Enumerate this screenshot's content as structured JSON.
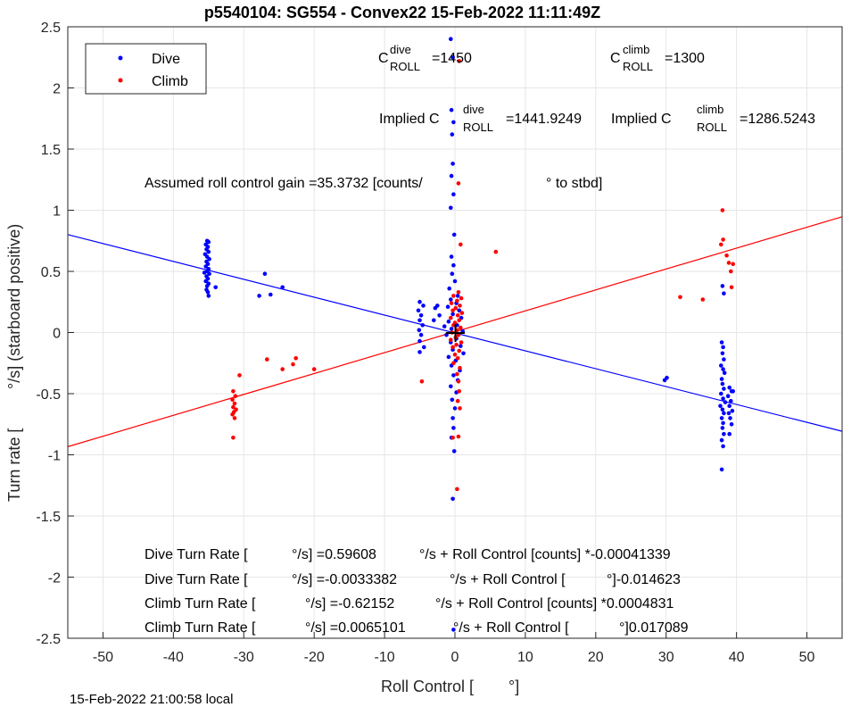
{
  "chart_data": {
    "type": "scatter",
    "title": "p5540104: SG554 - Convex22 15-Feb-2022 11:11:49Z",
    "xlabel_left": "Roll Control [",
    "xlabel_right": "°]",
    "ylabel_left": "Turn rate [",
    "ylabel_right": "°/s] (starboard positive)",
    "xlim": [
      -55,
      55
    ],
    "ylim": [
      -2.5,
      2.5
    ],
    "xticks": [
      -50,
      -40,
      -30,
      -20,
      -10,
      0,
      10,
      20,
      30,
      40,
      50
    ],
    "yticks": [
      -2.5,
      -2,
      -1.5,
      -1,
      -0.5,
      0,
      0.5,
      1,
      1.5,
      2,
      2.5
    ],
    "grid": true,
    "legend_position": "top-left",
    "colors": {
      "dive": "#0000ff",
      "climb": "#ff0000",
      "origin_mark": "#000000"
    },
    "series": [
      {
        "name": "Dive",
        "color": "#0000ff",
        "points": [
          [
            -35.2,
            0.75
          ],
          [
            -35.0,
            0.74
          ],
          [
            -35.4,
            0.72
          ],
          [
            -35.1,
            0.7
          ],
          [
            -35.3,
            0.68
          ],
          [
            -35.0,
            0.66
          ],
          [
            -35.5,
            0.64
          ],
          [
            -35.2,
            0.62
          ],
          [
            -34.9,
            0.6
          ],
          [
            -35.3,
            0.58
          ],
          [
            -35.1,
            0.56
          ],
          [
            -35.4,
            0.54
          ],
          [
            -35.0,
            0.52
          ],
          [
            -35.2,
            0.5
          ],
          [
            -35.6,
            0.49
          ],
          [
            -34.9,
            0.48
          ],
          [
            -35.3,
            0.46
          ],
          [
            -35.1,
            0.44
          ],
          [
            -35.4,
            0.42
          ],
          [
            -35.0,
            0.4
          ],
          [
            -35.2,
            0.38
          ],
          [
            -35.3,
            0.35
          ],
          [
            -35.1,
            0.33
          ],
          [
            -35.0,
            0.3
          ],
          [
            -34.0,
            0.37
          ],
          [
            -27.0,
            0.48
          ],
          [
            -27.8,
            0.3
          ],
          [
            -26.2,
            0.31
          ],
          [
            -24.5,
            0.37
          ],
          [
            -5.0,
            0.25
          ],
          [
            -4.5,
            0.22
          ],
          [
            -5.2,
            0.18
          ],
          [
            -4.8,
            0.14
          ],
          [
            -5.0,
            0.1
          ],
          [
            -4.6,
            0.06
          ],
          [
            -5.1,
            0.02
          ],
          [
            -4.8,
            -0.02
          ],
          [
            -5.0,
            -0.07
          ],
          [
            -4.4,
            -0.12
          ],
          [
            -5.0,
            -0.16
          ],
          [
            -2.5,
            0.22
          ],
          [
            -2.2,
            0.14
          ],
          [
            -3.0,
            0.1
          ],
          [
            -2.8,
            0.2
          ],
          [
            -1.5,
            0.05
          ],
          [
            -0.6,
            2.4
          ],
          [
            -0.3,
            2.25
          ],
          [
            -0.5,
            1.82
          ],
          [
            -0.2,
            1.72
          ],
          [
            -0.4,
            1.62
          ],
          [
            -0.3,
            1.38
          ],
          [
            -0.5,
            1.28
          ],
          [
            -0.2,
            1.13
          ],
          [
            -0.6,
            1.02
          ],
          [
            -0.1,
            0.8
          ],
          [
            -0.5,
            0.62
          ],
          [
            -0.2,
            0.55
          ],
          [
            -0.4,
            0.48
          ],
          [
            0.0,
            0.42
          ],
          [
            -0.8,
            0.36
          ],
          [
            0.4,
            0.3
          ],
          [
            -0.6,
            0.27
          ],
          [
            0.2,
            0.24
          ],
          [
            -1.0,
            0.21
          ],
          [
            0.6,
            0.18
          ],
          [
            -0.3,
            0.15
          ],
          [
            0.9,
            0.12
          ],
          [
            -0.9,
            0.09
          ],
          [
            0.3,
            0.06
          ],
          [
            -0.5,
            0.03
          ],
          [
            1.1,
            0.01
          ],
          [
            -1.2,
            -0.02
          ],
          [
            0.2,
            -0.05
          ],
          [
            -0.6,
            -0.08
          ],
          [
            0.8,
            -0.11
          ],
          [
            -0.3,
            -0.14
          ],
          [
            1.2,
            -0.17
          ],
          [
            -0.9,
            -0.2
          ],
          [
            0.1,
            -0.23
          ],
          [
            -0.5,
            -0.27
          ],
          [
            0.7,
            -0.31
          ],
          [
            -0.2,
            -0.35
          ],
          [
            0.4,
            -0.39
          ],
          [
            -0.6,
            -0.44
          ],
          [
            0.2,
            -0.49
          ],
          [
            -0.4,
            -0.55
          ],
          [
            0.0,
            -0.62
          ],
          [
            -0.3,
            -0.7
          ],
          [
            -0.2,
            -0.78
          ],
          [
            -0.5,
            -0.86
          ],
          [
            -0.1,
            -0.97
          ],
          [
            -0.3,
            -1.36
          ],
          [
            -0.2,
            -2.43
          ],
          [
            29.8,
            -0.39
          ],
          [
            30.1,
            -0.37
          ],
          [
            38.0,
            0.38
          ],
          [
            38.2,
            0.32
          ],
          [
            37.9,
            -0.08
          ],
          [
            38.1,
            -0.12
          ],
          [
            38.0,
            -0.17
          ],
          [
            38.2,
            -0.22
          ],
          [
            37.8,
            -0.27
          ],
          [
            38.1,
            -0.3
          ],
          [
            38.3,
            -0.33
          ],
          [
            37.9,
            -0.38
          ],
          [
            38.0,
            -0.42
          ],
          [
            38.2,
            -0.46
          ],
          [
            37.8,
            -0.5
          ],
          [
            38.1,
            -0.54
          ],
          [
            38.4,
            -0.57
          ],
          [
            37.7,
            -0.6
          ],
          [
            38.0,
            -0.63
          ],
          [
            38.2,
            -0.66
          ],
          [
            37.9,
            -0.7
          ],
          [
            38.1,
            -0.74
          ],
          [
            38.0,
            -0.78
          ],
          [
            38.2,
            -0.83
          ],
          [
            37.9,
            -0.88
          ],
          [
            38.1,
            -0.93
          ],
          [
            37.9,
            -1.12
          ],
          [
            39.0,
            -0.45
          ],
          [
            39.3,
            -0.48
          ],
          [
            38.8,
            -0.52
          ],
          [
            39.2,
            -0.56
          ],
          [
            39.0,
            -0.6
          ],
          [
            39.4,
            -0.64
          ],
          [
            38.9,
            -0.66
          ],
          [
            39.1,
            -0.7
          ],
          [
            39.3,
            -0.75
          ],
          [
            39.0,
            -0.83
          ],
          [
            39.5,
            -0.48
          ]
        ]
      },
      {
        "name": "Climb",
        "color": "#ff0000",
        "points": [
          [
            -31.5,
            -0.48
          ],
          [
            -31.2,
            -0.52
          ],
          [
            -31.6,
            -0.55
          ],
          [
            -31.3,
            -0.58
          ],
          [
            -31.5,
            -0.61
          ],
          [
            -31.1,
            -0.63
          ],
          [
            -31.4,
            -0.65
          ],
          [
            -31.6,
            -0.67
          ],
          [
            -31.3,
            -0.7
          ],
          [
            -31.5,
            -0.86
          ],
          [
            -30.6,
            -0.35
          ],
          [
            -26.7,
            -0.22
          ],
          [
            -24.5,
            -0.3
          ],
          [
            -23.0,
            -0.26
          ],
          [
            -22.6,
            -0.21
          ],
          [
            -20.0,
            -0.3
          ],
          [
            -4.7,
            -0.4
          ],
          [
            0.6,
            2.22
          ],
          [
            0.5,
            1.22
          ],
          [
            0.8,
            0.72
          ],
          [
            0.5,
            0.33
          ],
          [
            -0.2,
            0.3
          ],
          [
            0.9,
            0.28
          ],
          [
            0.3,
            0.26
          ],
          [
            -0.5,
            0.24
          ],
          [
            0.7,
            0.22
          ],
          [
            0.1,
            0.2
          ],
          [
            -0.3,
            0.18
          ],
          [
            1.0,
            0.16
          ],
          [
            0.4,
            0.14
          ],
          [
            -0.6,
            0.12
          ],
          [
            0.6,
            0.1
          ],
          [
            0.0,
            0.08
          ],
          [
            -0.2,
            0.06
          ],
          [
            0.8,
            0.04
          ],
          [
            0.3,
            0.02
          ],
          [
            -0.4,
            0.0
          ],
          [
            0.5,
            -0.02
          ],
          [
            0.1,
            -0.04
          ],
          [
            -0.6,
            -0.06
          ],
          [
            0.9,
            -0.08
          ],
          [
            0.2,
            -0.1
          ],
          [
            -0.3,
            -0.12
          ],
          [
            0.6,
            -0.15
          ],
          [
            0.0,
            -0.18
          ],
          [
            0.4,
            -0.21
          ],
          [
            -0.2,
            -0.25
          ],
          [
            0.7,
            -0.29
          ],
          [
            0.3,
            -0.34
          ],
          [
            0.5,
            -0.4
          ],
          [
            0.6,
            -0.48
          ],
          [
            0.4,
            -0.56
          ],
          [
            0.7,
            -0.62
          ],
          [
            0.5,
            -0.85
          ],
          [
            -0.3,
            -0.86
          ],
          [
            0.3,
            -1.28
          ],
          [
            5.8,
            0.66
          ],
          [
            32.0,
            0.29
          ],
          [
            35.2,
            0.27
          ],
          [
            37.8,
            0.72
          ],
          [
            38.0,
            1.0
          ],
          [
            38.1,
            0.76
          ],
          [
            38.6,
            0.63
          ],
          [
            38.9,
            0.57
          ],
          [
            39.2,
            0.5
          ],
          [
            39.5,
            0.56
          ],
          [
            39.3,
            0.37
          ]
        ]
      }
    ],
    "fit_lines": [
      {
        "series": "Dive",
        "slope": -0.014623,
        "intercept": -0.0033382
      },
      {
        "series": "Climb",
        "slope": 0.017089,
        "intercept": 0.0065101
      }
    ],
    "annotations": {
      "croll_dive_label": "C",
      "croll_dive_sup": "dive",
      "croll_dive_sub": "ROLL",
      "croll_dive_value": "=1450",
      "croll_climb_label": "C",
      "croll_climb_sup": "climb",
      "croll_climb_sub": "ROLL",
      "croll_climb_value": "=1300",
      "implied_dive_label": "Implied C",
      "implied_dive_sup": "dive",
      "implied_dive_sub": "ROLL",
      "implied_dive_value": "=1441.9249",
      "implied_climb_label": "Implied C",
      "implied_climb_sup": "climb",
      "implied_climb_sub": "ROLL",
      "implied_climb_value": "=1286.5243",
      "gain_text": "Assumed roll control gain =35.3732 [counts/",
      "gain_unit": "° to stbd]",
      "fit_dive_counts": [
        "Dive Turn Rate [",
        "°/s] =0.59608",
        "°/s + Roll Control [counts] *-0.00041339"
      ],
      "fit_dive_deg": [
        "Dive Turn Rate [",
        "°/s] =-0.0033382",
        "°/s + Roll Control [",
        "°]-0.014623"
      ],
      "fit_climb_counts": [
        "Climb Turn Rate [",
        "°/s] =-0.62152",
        "°/s + Roll Control [counts] *0.0004831"
      ],
      "fit_climb_deg": [
        "Climb Turn Rate [",
        "°/s] =0.0065101",
        "°/s + Roll Control [",
        "°]0.017089"
      ]
    }
  },
  "footer_timestamp": "15-Feb-2022 21:00:58 local"
}
